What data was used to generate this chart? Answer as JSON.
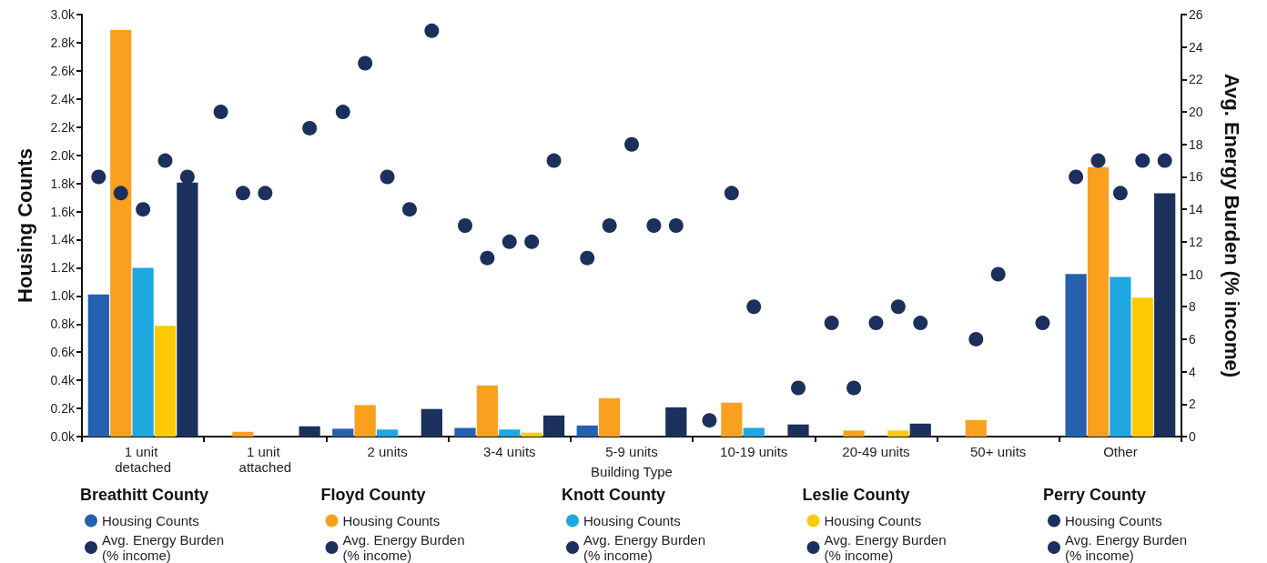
{
  "chart_data": {
    "type": "bar",
    "categories": [
      "1 unit detached",
      "1 unit attached",
      "2 units",
      "3-4 units",
      "5-9 units",
      "10-19 units",
      "20-49 units",
      "50+ units",
      "Other"
    ],
    "xlabel": "Building Type",
    "ylabel": "Housing Counts",
    "y2label": "Avg. Energy Burden (% income)",
    "ylim": [
      0,
      3000
    ],
    "yticks": [
      {
        "value": 0,
        "label": "0.0k"
      },
      {
        "value": 200,
        "label": "0.2k"
      },
      {
        "value": 400,
        "label": "0.4k"
      },
      {
        "value": 600,
        "label": "0.6k"
      },
      {
        "value": 800,
        "label": "0.8k"
      },
      {
        "value": 1000,
        "label": "1.0k"
      },
      {
        "value": 1200,
        "label": "1.2k"
      },
      {
        "value": 1400,
        "label": "1.4k"
      },
      {
        "value": 1600,
        "label": "1.6k"
      },
      {
        "value": 1800,
        "label": "1.8k"
      },
      {
        "value": 2000,
        "label": "2.0k"
      },
      {
        "value": 2200,
        "label": "2.2k"
      },
      {
        "value": 2400,
        "label": "2.4k"
      },
      {
        "value": 2600,
        "label": "2.6k"
      },
      {
        "value": 2800,
        "label": "2.8k"
      },
      {
        "value": 3000,
        "label": "3.0k"
      }
    ],
    "y2lim": [
      0,
      26
    ],
    "y2ticks": [
      0,
      2,
      4,
      6,
      8,
      10,
      12,
      14,
      16,
      18,
      20,
      22,
      24,
      26
    ],
    "grid": false,
    "legend": "bottom",
    "marker": "circle",
    "annotations": [
      "Breathitt County",
      "Floyd County",
      "Knott County",
      "Leslie County",
      "Perry County"
    ],
    "series": [
      {
        "name": "Housing Counts",
        "type": "bar",
        "color": "#2660b0",
        "values": [
          1010,
          null,
          56,
          62,
          79,
          null,
          null,
          null,
          1155
        ]
      },
      {
        "name": "Avg. Energy Burden (% income)",
        "type": "scatter",
        "axis": "y2",
        "color": "#1b305c",
        "values": [
          16,
          20,
          20,
          13,
          11,
          1,
          7,
          null,
          16
        ]
      },
      {
        "name": "Housing Counts",
        "type": "bar",
        "color": "#f9a11f",
        "values": [
          2890,
          34,
          224,
          363,
          273,
          241,
          43,
          118,
          1916
        ]
      },
      {
        "name": "Avg. Energy Burden (% income)",
        "type": "scatter",
        "axis": "y2",
        "color": "#1b305c",
        "values": [
          15,
          15,
          23,
          11,
          13,
          15,
          3,
          6,
          17
        ]
      },
      {
        "name": "Housing Counts",
        "type": "bar",
        "color": "#1ea7e0",
        "values": [
          1200,
          null,
          50,
          50,
          null,
          62,
          null,
          null,
          1135
        ]
      },
      {
        "name": "Avg. Energy Burden (% income)",
        "type": "scatter",
        "axis": "y2",
        "color": "#1b305c",
        "values": [
          14,
          15,
          16,
          12,
          18,
          8,
          7,
          10,
          15
        ]
      },
      {
        "name": "Housing Counts",
        "type": "bar",
        "color": "#ffca05",
        "values": [
          787,
          null,
          null,
          28,
          null,
          null,
          43,
          null,
          987
        ]
      },
      {
        "name": "Avg. Energy Burden (% income)",
        "type": "scatter",
        "axis": "y2",
        "color": "#1b305c",
        "values": [
          17,
          null,
          14,
          12,
          13,
          null,
          8,
          null,
          17
        ]
      },
      {
        "name": "Housing Counts",
        "type": "bar",
        "color": "#1b305c",
        "values": [
          1806,
          73,
          196,
          150,
          208,
          86,
          92,
          null,
          1730
        ]
      },
      {
        "name": "Avg. Energy Burden (% income)",
        "type": "scatter",
        "axis": "y2",
        "color": "#1b305c",
        "values": [
          16,
          19,
          25,
          17,
          13,
          3,
          7,
          7,
          17
        ]
      }
    ]
  }
}
